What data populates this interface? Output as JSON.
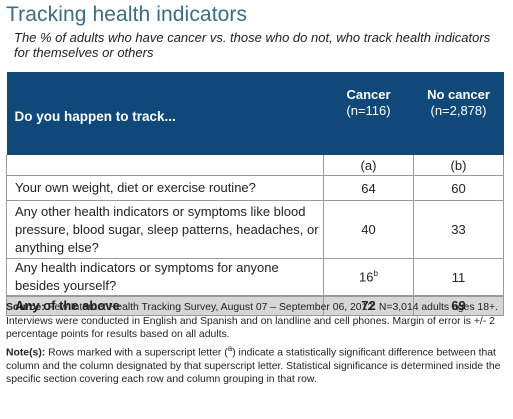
{
  "title": "Tracking health indicators",
  "subtitle": "The % of adults who have cancer vs. those who do not, who track health indicators for themselves or others",
  "table": {
    "question_header": "Do you happen to track...",
    "columns": [
      {
        "name": "Cancer",
        "n": "(n=116)",
        "letter": "(a)"
      },
      {
        "name": "No cancer",
        "n": "(n=2,878)",
        "letter": "(b)"
      }
    ],
    "rows": [
      {
        "label": "Your own weight, diet or exercise routine?",
        "a": "64",
        "a_sup": "",
        "b": "60"
      },
      {
        "label": "Any other health indicators or symptoms like blood pressure, blood sugar, sleep patterns, headaches, or anything else?",
        "a": "40",
        "a_sup": "",
        "b": "33"
      },
      {
        "label": "Any health indicators or symptoms for anyone besides yourself?",
        "a": "16",
        "a_sup": "b",
        "b": "11"
      }
    ],
    "total": {
      "label": "Any of the above",
      "a": "72",
      "b": "69"
    }
  },
  "footer": {
    "source_label": "Source:",
    "source_text": " Pew Internet Health Tracking Survey, August 07 – September 06, 2012. N=3,014 adults ages 18+. Interviews were conducted in English and Spanish and on landline and cell phones. Margin of error is +/- 2 percentage points for results based on all adults.",
    "notes_label": "Note(s):",
    "notes_text_1": " Rows marked with a superscript letter (",
    "notes_sup": "a",
    "notes_text_2": ") indicate a statistically significant difference between that column and the column designated by that superscript letter. Statistical significance is determined inside the specific section covering each row and column grouping in that row."
  }
}
